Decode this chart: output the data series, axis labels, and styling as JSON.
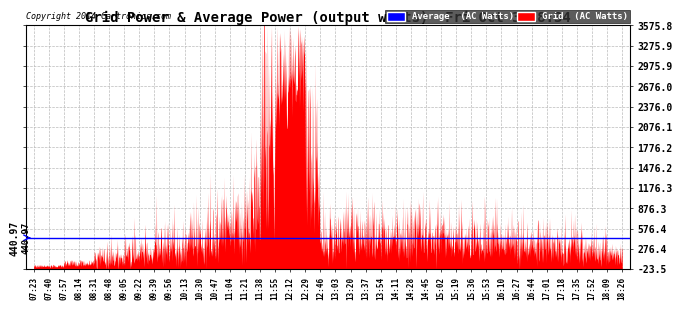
{
  "title": "Grid Power & Average Power (output watts)  Fri Oct 3 18:34",
  "copyright": "Copyright 2014 Cartronics.com",
  "yticks": [
    3575.8,
    3275.9,
    2975.9,
    2676.0,
    2376.0,
    2076.1,
    1776.2,
    1476.2,
    1176.3,
    876.3,
    576.4,
    276.4,
    -23.5
  ],
  "average_line": 440.97,
  "ymin": -23.5,
  "ymax": 3575.8,
  "grid_color": "#bbbbbb",
  "fill_color": "#ff0000",
  "avg_color": "#0000ff",
  "background_color": "#ffffff",
  "legend_avg_label": "Average  (AC Watts)",
  "legend_grid_label": "Grid  (AC Watts)",
  "xtick_labels": [
    "07:23",
    "07:40",
    "07:57",
    "08:14",
    "08:31",
    "08:48",
    "09:05",
    "09:22",
    "09:39",
    "09:56",
    "10:13",
    "10:30",
    "10:47",
    "11:04",
    "11:21",
    "11:38",
    "11:55",
    "12:12",
    "12:29",
    "12:46",
    "13:03",
    "13:20",
    "13:37",
    "13:54",
    "14:11",
    "14:28",
    "14:45",
    "15:02",
    "15:19",
    "15:36",
    "15:53",
    "16:10",
    "16:27",
    "16:44",
    "17:01",
    "17:18",
    "17:35",
    "17:52",
    "18:09",
    "18:26"
  ],
  "avg_annotation": "440.97"
}
